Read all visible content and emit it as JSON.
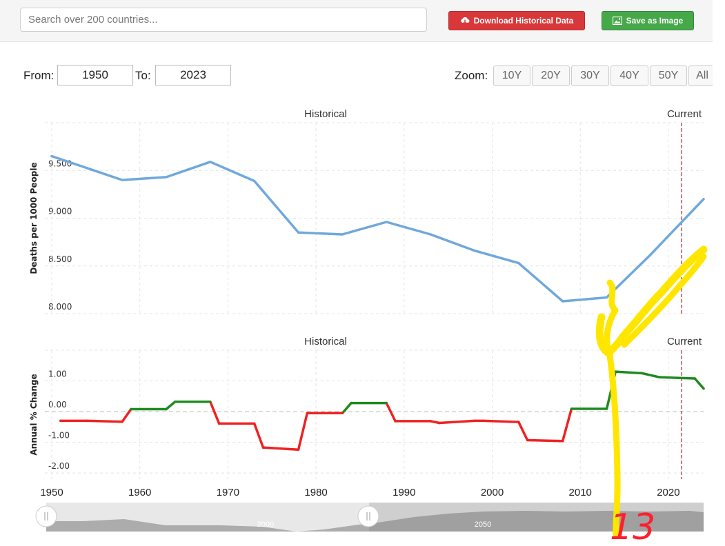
{
  "search": {
    "placeholder": "Search over 200 countries..."
  },
  "buttons": {
    "download": "Download Historical Data",
    "save": "Save as Image"
  },
  "range": {
    "from_label": "From:",
    "from": "1950",
    "to_label": "To:",
    "to": "2023"
  },
  "zoom": {
    "label": "Zoom:",
    "options": [
      "10Y",
      "20Y",
      "30Y",
      "40Y",
      "50Y",
      "All"
    ]
  },
  "colors": {
    "line": "#6fa8dc",
    "positive": "#1f8a1f",
    "negative": "#ee2222",
    "current": "#d04a4a",
    "annotation": "#ffe600"
  },
  "chart_data": [
    {
      "type": "line",
      "ylabel": "Deaths per 1000 People",
      "section_labels": [
        "Historical",
        "Current"
      ],
      "current_year": 2021.5,
      "xlim": [
        1950,
        2024
      ],
      "ylim": [
        8.0,
        10.0
      ],
      "yticks": [
        8.0,
        8.5,
        9.0,
        9.5
      ],
      "ytick_labels": [
        "8.000",
        "8.500",
        "9.000",
        "9.500"
      ],
      "x": [
        1950,
        1958,
        1963,
        1968,
        1973,
        1978,
        1983,
        1988,
        1993,
        1998,
        2003,
        2008,
        2013,
        2018,
        2024
      ],
      "values": [
        9.65,
        9.4,
        9.43,
        9.59,
        9.39,
        8.85,
        8.83,
        8.96,
        8.83,
        8.66,
        8.53,
        8.13,
        8.17,
        8.62,
        9.2
      ]
    },
    {
      "type": "line",
      "ylabel": "Annual % Change",
      "section_labels": [
        "Historical",
        "Current"
      ],
      "xlim": [
        1950,
        2024
      ],
      "ylim": [
        -2.2,
        2.0
      ],
      "yticks": [
        -2.0,
        -1.0,
        0.0,
        1.0
      ],
      "ytick_labels": [
        "-2.00",
        "-1.00",
        "0.00",
        "1.00"
      ],
      "x": [
        1951,
        1954,
        1958,
        1959,
        1963,
        1964,
        1968,
        1969,
        1973,
        1974,
        1978,
        1979,
        1983,
        1984,
        1988,
        1989,
        1993,
        1994,
        1998,
        1999,
        2003,
        2004,
        2008,
        2009,
        2013,
        2014,
        2017,
        2019,
        2021,
        2023,
        2024
      ],
      "values": [
        -0.3,
        -0.3,
        -0.33,
        0.08,
        0.08,
        0.32,
        0.32,
        -0.39,
        -0.39,
        -1.17,
        -1.24,
        -0.05,
        -0.05,
        0.28,
        0.28,
        -0.31,
        -0.31,
        -0.37,
        -0.3,
        -0.3,
        -0.34,
        -0.93,
        -0.96,
        0.09,
        0.09,
        1.3,
        1.25,
        1.12,
        1.1,
        1.08,
        0.75
      ]
    }
  ],
  "xaxis": {
    "ticks": [
      1950,
      1960,
      1970,
      1980,
      1990,
      2000,
      2010,
      2020
    ]
  },
  "navigator": {
    "labels": [
      "2000",
      "2050"
    ]
  },
  "annotation": {
    "text": "13"
  }
}
